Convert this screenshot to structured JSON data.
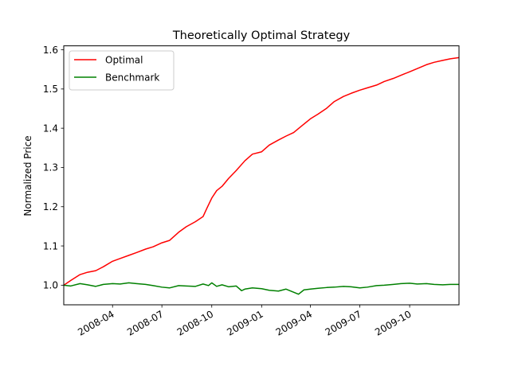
{
  "chart_data": {
    "type": "line",
    "title": "Theoretically Optimal Strategy",
    "xlabel": "",
    "ylabel": "Normalized Price",
    "x_axis_type": "date",
    "xlim": [
      "2008-01-02",
      "2009-12-31"
    ],
    "ylim": [
      0.95,
      1.61
    ],
    "x_ticks": [
      {
        "date": "2008-04-01",
        "label": "2008-04"
      },
      {
        "date": "2008-07-01",
        "label": "2008-07"
      },
      {
        "date": "2008-10-01",
        "label": "2008-10"
      },
      {
        "date": "2009-01-01",
        "label": "2009-01"
      },
      {
        "date": "2009-04-01",
        "label": "2009-04"
      },
      {
        "date": "2009-07-01",
        "label": "2009-07"
      },
      {
        "date": "2009-10-01",
        "label": "2009-10"
      }
    ],
    "y_ticks": [
      {
        "value": 1.0,
        "label": "1.0"
      },
      {
        "value": 1.1,
        "label": "1.1"
      },
      {
        "value": 1.2,
        "label": "1.2"
      },
      {
        "value": 1.3,
        "label": "1.3"
      },
      {
        "value": 1.4,
        "label": "1.4"
      },
      {
        "value": 1.5,
        "label": "1.5"
      },
      {
        "value": 1.6,
        "label": "1.6"
      }
    ],
    "grid": false,
    "legend_position": "top-left",
    "series": [
      {
        "name": "Optimal",
        "color": "#ff0000",
        "points": [
          [
            "2008-01-02",
            1.0
          ],
          [
            "2008-01-15",
            1.012
          ],
          [
            "2008-02-01",
            1.027
          ],
          [
            "2008-02-15",
            1.033
          ],
          [
            "2008-03-01",
            1.037
          ],
          [
            "2008-03-15",
            1.047
          ],
          [
            "2008-04-01",
            1.061
          ],
          [
            "2008-04-15",
            1.068
          ],
          [
            "2008-05-01",
            1.076
          ],
          [
            "2008-05-15",
            1.083
          ],
          [
            "2008-06-01",
            1.092
          ],
          [
            "2008-06-15",
            1.098
          ],
          [
            "2008-07-01",
            1.108
          ],
          [
            "2008-07-15",
            1.114
          ],
          [
            "2008-08-01",
            1.135
          ],
          [
            "2008-08-15",
            1.149
          ],
          [
            "2008-09-01",
            1.162
          ],
          [
            "2008-09-15",
            1.175
          ],
          [
            "2008-09-22",
            1.196
          ],
          [
            "2008-10-01",
            1.222
          ],
          [
            "2008-10-10",
            1.241
          ],
          [
            "2008-10-20",
            1.252
          ],
          [
            "2008-11-01",
            1.272
          ],
          [
            "2008-11-15",
            1.292
          ],
          [
            "2008-12-01",
            1.317
          ],
          [
            "2008-12-15",
            1.334
          ],
          [
            "2009-01-01",
            1.34
          ],
          [
            "2009-01-15",
            1.357
          ],
          [
            "2009-02-01",
            1.37
          ],
          [
            "2009-02-15",
            1.38
          ],
          [
            "2009-03-01",
            1.389
          ],
          [
            "2009-03-15",
            1.405
          ],
          [
            "2009-04-01",
            1.424
          ],
          [
            "2009-04-15",
            1.436
          ],
          [
            "2009-05-01",
            1.451
          ],
          [
            "2009-05-15",
            1.468
          ],
          [
            "2009-06-01",
            1.481
          ],
          [
            "2009-06-15",
            1.489
          ],
          [
            "2009-07-01",
            1.497
          ],
          [
            "2009-07-15",
            1.503
          ],
          [
            "2009-08-01",
            1.51
          ],
          [
            "2009-08-15",
            1.519
          ],
          [
            "2009-09-01",
            1.527
          ],
          [
            "2009-09-15",
            1.535
          ],
          [
            "2009-10-01",
            1.544
          ],
          [
            "2009-10-15",
            1.552
          ],
          [
            "2009-11-01",
            1.562
          ],
          [
            "2009-11-15",
            1.568
          ],
          [
            "2009-12-01",
            1.573
          ],
          [
            "2009-12-15",
            1.577
          ],
          [
            "2009-12-31",
            1.58
          ]
        ]
      },
      {
        "name": "Benchmark",
        "color": "#008000",
        "points": [
          [
            "2008-01-02",
            1.0
          ],
          [
            "2008-01-15",
            0.998
          ],
          [
            "2008-02-01",
            1.004
          ],
          [
            "2008-02-15",
            1.001
          ],
          [
            "2008-03-01",
            0.997
          ],
          [
            "2008-03-15",
            1.002
          ],
          [
            "2008-04-01",
            1.004
          ],
          [
            "2008-04-15",
            1.003
          ],
          [
            "2008-05-01",
            1.006
          ],
          [
            "2008-05-15",
            1.004
          ],
          [
            "2008-06-01",
            1.002
          ],
          [
            "2008-06-15",
            0.999
          ],
          [
            "2008-07-01",
            0.995
          ],
          [
            "2008-07-15",
            0.993
          ],
          [
            "2008-08-01",
            0.999
          ],
          [
            "2008-08-15",
            0.998
          ],
          [
            "2008-09-01",
            0.997
          ],
          [
            "2008-09-15",
            1.003
          ],
          [
            "2008-09-25",
            0.999
          ],
          [
            "2008-10-01",
            1.006
          ],
          [
            "2008-10-10",
            0.997
          ],
          [
            "2008-10-20",
            1.001
          ],
          [
            "2008-11-01",
            0.996
          ],
          [
            "2008-11-15",
            0.998
          ],
          [
            "2008-11-25",
            0.986
          ],
          [
            "2008-12-01",
            0.99
          ],
          [
            "2008-12-15",
            0.993
          ],
          [
            "2009-01-01",
            0.991
          ],
          [
            "2009-01-15",
            0.987
          ],
          [
            "2009-02-01",
            0.985
          ],
          [
            "2009-02-15",
            0.99
          ],
          [
            "2009-03-01",
            0.982
          ],
          [
            "2009-03-10",
            0.977
          ],
          [
            "2009-03-20",
            0.988
          ],
          [
            "2009-04-01",
            0.99
          ],
          [
            "2009-04-15",
            0.992
          ],
          [
            "2009-05-01",
            0.994
          ],
          [
            "2009-05-15",
            0.995
          ],
          [
            "2009-06-01",
            0.997
          ],
          [
            "2009-06-15",
            0.996
          ],
          [
            "2009-07-01",
            0.993
          ],
          [
            "2009-07-15",
            0.995
          ],
          [
            "2009-08-01",
            0.999
          ],
          [
            "2009-08-15",
            1.0
          ],
          [
            "2009-09-01",
            1.002
          ],
          [
            "2009-09-15",
            1.004
          ],
          [
            "2009-10-01",
            1.005
          ],
          [
            "2009-10-15",
            1.003
          ],
          [
            "2009-11-01",
            1.004
          ],
          [
            "2009-11-15",
            1.002
          ],
          [
            "2009-12-01",
            1.001
          ],
          [
            "2009-12-15",
            1.002
          ],
          [
            "2009-12-31",
            1.002
          ]
        ]
      }
    ]
  }
}
